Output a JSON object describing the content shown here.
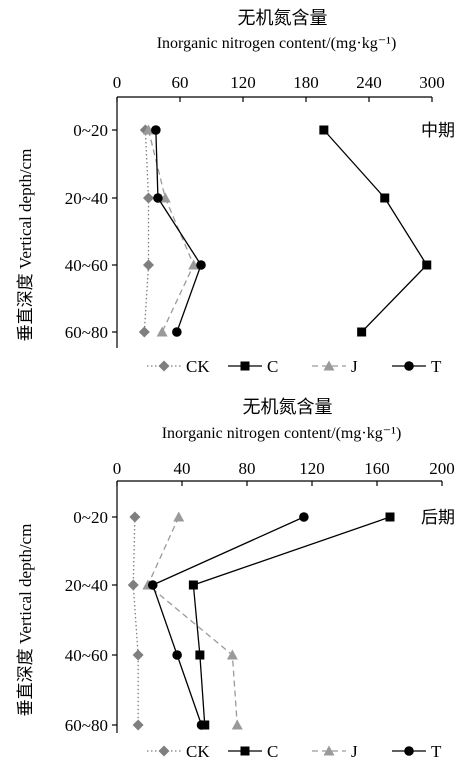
{
  "chart_data": [
    {
      "type": "line",
      "panel_label": "中期",
      "title_cn": "无机氮含量",
      "xlabel": "Inorganic nitrogen content/(mg·kg⁻¹)",
      "ylabel": "垂直深度 Vertical depth/cm",
      "xlim": [
        0,
        300
      ],
      "xticks": [
        "0",
        "60",
        "120",
        "180",
        "240",
        "300"
      ],
      "categories": [
        "0~20",
        "20~40",
        "40~60",
        "60~80"
      ],
      "series": [
        {
          "name": "CK",
          "color": "#7f7f7f",
          "marker": "diamond",
          "dash": "dotted",
          "values": [
            27,
            30,
            30,
            26
          ]
        },
        {
          "name": "C",
          "color": "#000000",
          "marker": "square",
          "dash": "solid",
          "values": [
            197,
            255,
            295,
            233
          ]
        },
        {
          "name": "J",
          "color": "#9a9a9a",
          "marker": "triangle",
          "dash": "dashed",
          "values": [
            30,
            46,
            73,
            43
          ]
        },
        {
          "name": "T",
          "color": "#000000",
          "marker": "circle",
          "dash": "solid",
          "values": [
            37,
            39,
            80,
            57
          ]
        }
      ],
      "grid": false,
      "legend": "bottom"
    },
    {
      "type": "line",
      "panel_label": "后期",
      "title_cn": "无机氮含量",
      "xlabel": "Inorganic nitrogen content/(mg·kg⁻¹)",
      "ylabel": "垂直深度 Vertical depth/cm",
      "xlim": [
        0,
        200
      ],
      "xticks": [
        "0",
        "40",
        "80",
        "120",
        "160",
        "200"
      ],
      "categories": [
        "0~20",
        "20~40",
        "40~60",
        "60~80"
      ],
      "series": [
        {
          "name": "CK",
          "color": "#7f7f7f",
          "marker": "diamond",
          "dash": "dotted",
          "values": [
            11,
            10,
            13,
            13
          ]
        },
        {
          "name": "C",
          "color": "#000000",
          "marker": "square",
          "dash": "solid",
          "values": [
            168,
            47,
            51,
            54
          ]
        },
        {
          "name": "J",
          "color": "#9a9a9a",
          "marker": "triangle",
          "dash": "dashed",
          "values": [
            38,
            19,
            71,
            74
          ]
        },
        {
          "name": "T",
          "color": "#000000",
          "marker": "circle",
          "dash": "solid",
          "values": [
            115,
            22,
            37,
            52
          ]
        }
      ],
      "grid": false,
      "legend": "bottom"
    }
  ]
}
